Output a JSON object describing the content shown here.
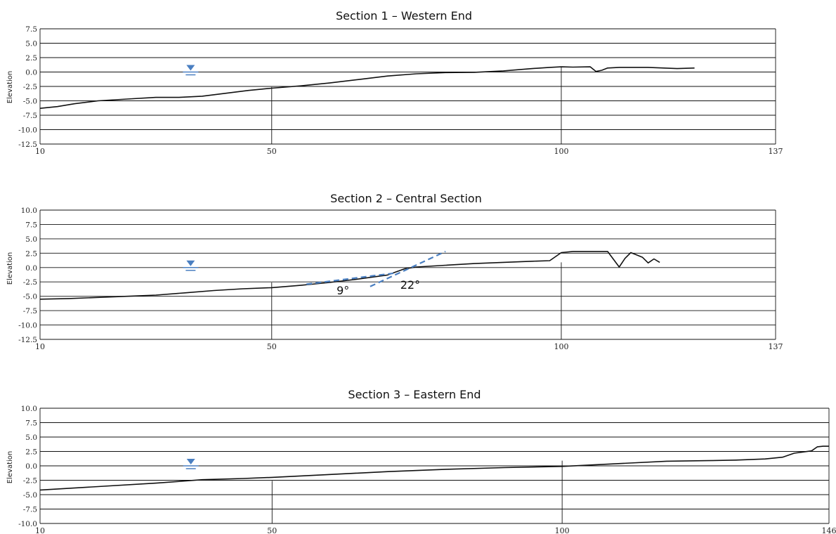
{
  "chart_data": [
    {
      "type": "line",
      "title": "Section 1 – Western End",
      "ylabel": "Elevation",
      "xlim": [
        10,
        137
      ],
      "ylim": [
        -12.5,
        7.5
      ],
      "y_ticks": [
        "7.5",
        "5.0",
        "2.5",
        "0.0",
        "-2.5",
        "-5.0",
        "-7.5",
        "-10.0",
        "-12.5"
      ],
      "x_ticks": [
        "10",
        "50",
        "100",
        "137"
      ],
      "vertical_marks_x": [
        50,
        100
      ],
      "water_level": {
        "x": 36,
        "y": 0.0
      },
      "profile": {
        "x": [
          10,
          13,
          16,
          20,
          25,
          30,
          34,
          38,
          42,
          46,
          50,
          55,
          60,
          65,
          70,
          75,
          80,
          85,
          90,
          95,
          98,
          100,
          102,
          105,
          106,
          107,
          108,
          110,
          115,
          120,
          123
        ],
        "y": [
          -6.3,
          -6.0,
          -5.5,
          -5.0,
          -4.7,
          -4.4,
          -4.4,
          -4.2,
          -3.7,
          -3.2,
          -2.8,
          -2.4,
          -1.9,
          -1.3,
          -0.7,
          -0.3,
          -0.1,
          -0.05,
          0.2,
          0.6,
          0.8,
          0.9,
          0.85,
          0.9,
          0.1,
          0.3,
          0.7,
          0.8,
          0.8,
          0.6,
          0.7
        ]
      }
    },
    {
      "type": "line",
      "title": "Section 2 – Central Section",
      "ylabel": "Elevation",
      "xlim": [
        10,
        137
      ],
      "ylim": [
        -12.5,
        10.0
      ],
      "y_ticks": [
        "10.0",
        "7.5",
        "5.0",
        "2.5",
        "0.0",
        "-2.5",
        "-5.0",
        "-7.5",
        "-10.0",
        "-12.5"
      ],
      "x_ticks": [
        "10",
        "50",
        "100",
        "137"
      ],
      "vertical_marks_x": [
        50,
        100
      ],
      "water_level": {
        "x": 36,
        "y": 0.0
      },
      "profile": {
        "x": [
          10,
          15,
          20,
          25,
          30,
          35,
          40,
          45,
          50,
          55,
          60,
          65,
          70,
          73,
          75,
          80,
          85,
          90,
          95,
          98,
          100,
          102,
          105,
          108,
          110,
          111,
          112,
          113,
          114,
          115,
          116,
          117
        ],
        "y": [
          -5.5,
          -5.4,
          -5.2,
          -5.0,
          -4.8,
          -4.4,
          -4.0,
          -3.7,
          -3.5,
          -3.1,
          -2.6,
          -2.0,
          -1.3,
          -0.2,
          0.1,
          0.4,
          0.7,
          0.9,
          1.1,
          1.2,
          2.6,
          2.8,
          2.8,
          2.8,
          0.1,
          1.6,
          2.6,
          2.2,
          1.8,
          0.8,
          1.5,
          0.9
        ]
      },
      "slope_lines": [
        {
          "label": "9°",
          "x": [
            56,
            71
          ],
          "y": [
            -2.9,
            -1.0
          ]
        },
        {
          "label": "22°",
          "x": [
            67,
            80
          ],
          "y": [
            -3.3,
            2.8
          ]
        }
      ]
    },
    {
      "type": "line",
      "title": "Section  3  –  Eastern  End",
      "ylabel": "Elevation",
      "xlim": [
        10,
        146
      ],
      "ylim": [
        -10.0,
        10.0
      ],
      "y_ticks": [
        "10.0",
        "7.5",
        "5.0",
        "2.5",
        "0.0",
        "-2.5",
        "-5.0",
        "-7.5",
        "-10.0"
      ],
      "x_ticks": [
        "10",
        "50",
        "100",
        "146"
      ],
      "vertical_marks_x": [
        50,
        100
      ],
      "water_level": {
        "x": 36,
        "y": 0.0
      },
      "profile": {
        "x": [
          10,
          20,
          30,
          38,
          45,
          50,
          60,
          70,
          80,
          90,
          100,
          110,
          118,
          125,
          130,
          135,
          138,
          140,
          143,
          144,
          145,
          146
        ],
        "y": [
          -4.2,
          -3.6,
          -3.0,
          -2.4,
          -2.2,
          -2.0,
          -1.5,
          -1.0,
          -0.6,
          -0.3,
          -0.1,
          0.4,
          0.8,
          0.9,
          1.0,
          1.2,
          1.5,
          2.2,
          2.6,
          3.3,
          3.4,
          3.4
        ]
      }
    }
  ]
}
